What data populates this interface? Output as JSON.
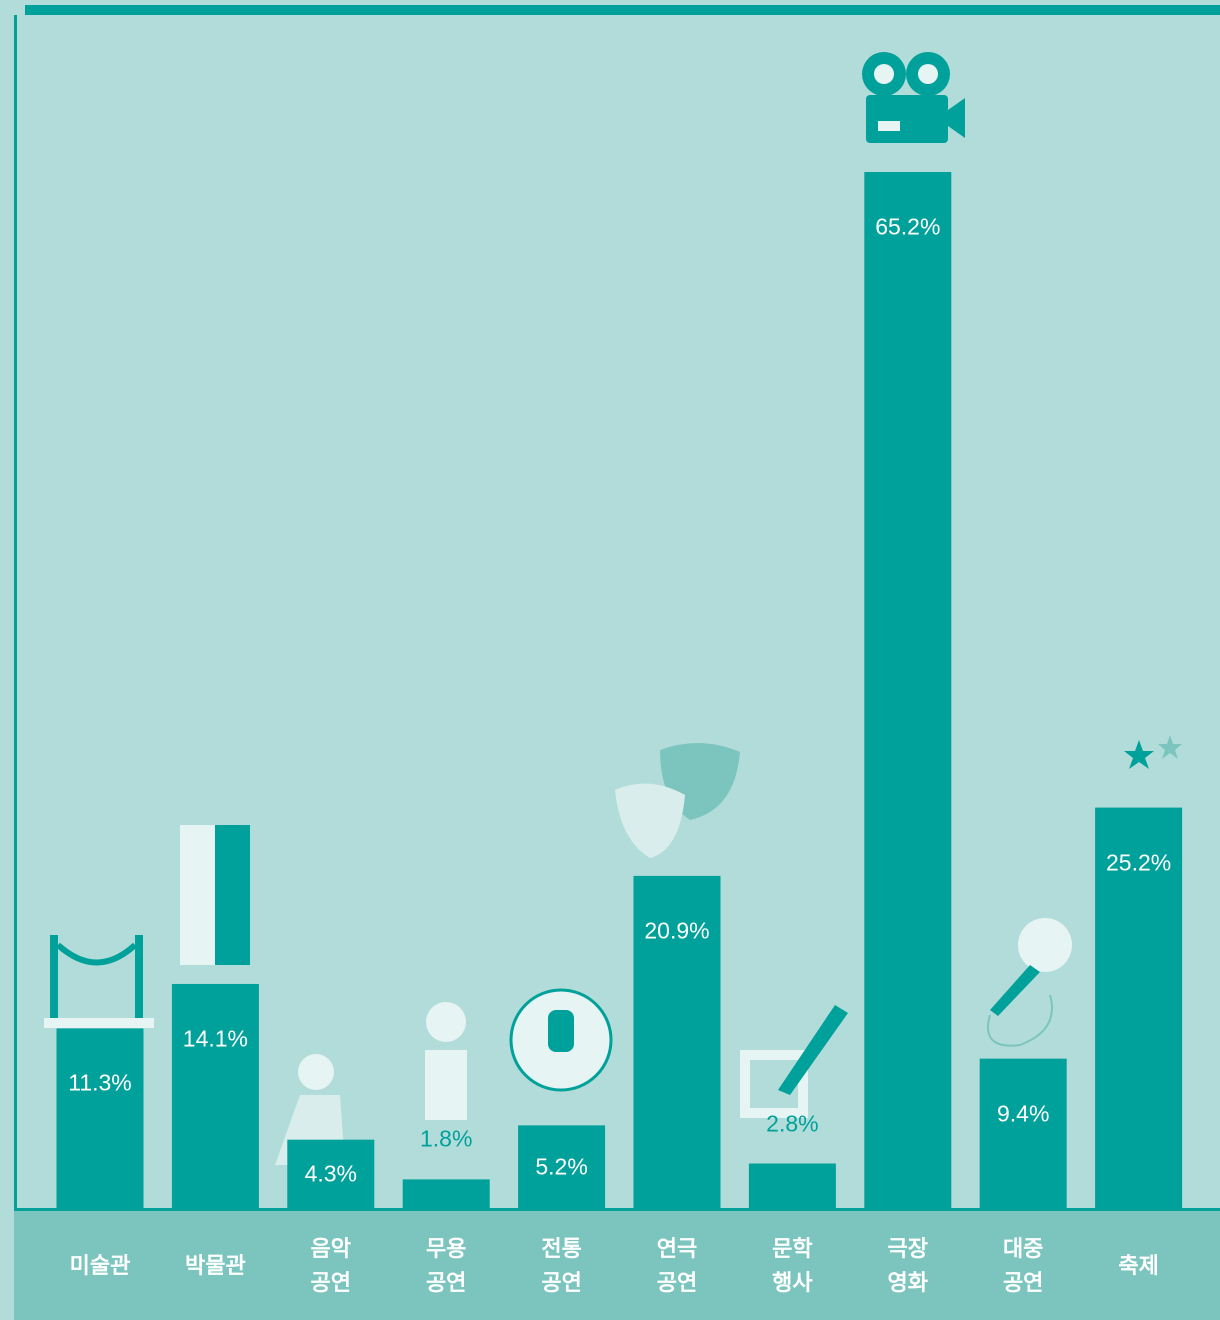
{
  "chart_data": {
    "type": "bar",
    "categories": [
      "미술관",
      "박물관",
      "음악\n공연",
      "무용\n공연",
      "전통\n공연",
      "연극\n공연",
      "문학\n행사",
      "극장\n영화",
      "대중\n공연",
      "축제"
    ],
    "values": [
      11.3,
      14.1,
      4.3,
      1.8,
      5.2,
      20.9,
      2.8,
      65.2,
      9.4,
      25.2
    ],
    "value_labels": [
      "11.3%",
      "14.1%",
      "4.3%",
      "1.8%",
      "5.2%",
      "20.9%",
      "2.8%",
      "65.2%",
      "9.4%",
      "25.2%"
    ],
    "color": "#00a19a"
  }
}
